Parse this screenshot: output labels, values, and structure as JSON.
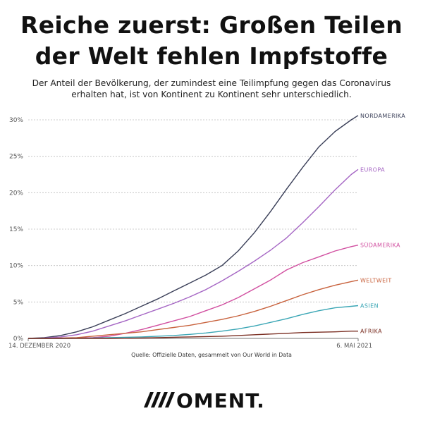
{
  "header": {
    "title_line1": "Reiche zuerst: Großen Teilen",
    "title_line2": "der Welt fehlen Impfstoffe",
    "subtitle_line1": "Der Anteil der Bevölkerung, der zumindest eine Teilimpfung gegen das Coronavirus",
    "subtitle_line2": "erhalten hat, ist von Kontinent zu Kontinent sehr unterschiedlich."
  },
  "footer": {
    "source": "Quelle: Offizielle Daten, gesammelt von Our World in Data",
    "logo": "MOMENT."
  },
  "chart_data": {
    "type": "line",
    "title": "",
    "xlabel": "",
    "ylabel": "",
    "ylim": [
      0,
      30
    ],
    "y_ticks": [
      0,
      5,
      10,
      15,
      20,
      25,
      30
    ],
    "y_tick_labels": [
      "0%",
      "5%",
      "10%",
      "15%",
      "20%",
      "25%",
      "30%"
    ],
    "x_range_days": [
      0,
      143
    ],
    "x_tick_labels": [
      {
        "day": 0,
        "label": "14. DEZEMBER 2020"
      },
      {
        "day": 143,
        "label": "6. MAI 2021"
      }
    ],
    "grid": true,
    "series": [
      {
        "name": "NORDAMERIKA",
        "color": "#3a3f58",
        "x": [
          0,
          7,
          14,
          21,
          28,
          35,
          42,
          49,
          56,
          63,
          70,
          77,
          84,
          91,
          98,
          105,
          112,
          119,
          126,
          133,
          140,
          143
        ],
        "y": [
          0,
          0.1,
          0.4,
          0.9,
          1.6,
          2.5,
          3.4,
          4.4,
          5.4,
          6.5,
          7.6,
          8.7,
          10.0,
          12.0,
          14.5,
          17.4,
          20.5,
          23.5,
          26.3,
          28.4,
          30.0,
          30.6
        ]
      },
      {
        "name": "EUROPA",
        "color": "#a566c4",
        "x": [
          0,
          7,
          14,
          21,
          28,
          35,
          42,
          49,
          56,
          63,
          70,
          77,
          84,
          91,
          98,
          105,
          112,
          119,
          126,
          133,
          140,
          143
        ],
        "y": [
          0,
          0.05,
          0.2,
          0.5,
          1.0,
          1.7,
          2.4,
          3.2,
          4.0,
          4.8,
          5.7,
          6.7,
          7.9,
          9.2,
          10.6,
          12.1,
          13.8,
          15.9,
          18.1,
          20.4,
          22.5,
          23.2
        ]
      },
      {
        "name": "SÜDAMERIKA",
        "color": "#d14fa0",
        "x": [
          0,
          7,
          14,
          21,
          28,
          35,
          42,
          49,
          56,
          63,
          70,
          77,
          84,
          91,
          98,
          105,
          112,
          119,
          126,
          133,
          140,
          143
        ],
        "y": [
          0,
          0,
          0,
          0.05,
          0.1,
          0.3,
          0.7,
          1.2,
          1.8,
          2.4,
          3.0,
          3.8,
          4.6,
          5.6,
          6.8,
          8.0,
          9.4,
          10.4,
          11.2,
          12.0,
          12.6,
          12.8
        ]
      },
      {
        "name": "WELTWEIT",
        "color": "#c8623d",
        "x": [
          0,
          7,
          14,
          21,
          28,
          35,
          42,
          49,
          56,
          63,
          70,
          77,
          84,
          91,
          98,
          105,
          112,
          119,
          126,
          133,
          140,
          143
        ],
        "y": [
          0,
          0,
          0.05,
          0.1,
          0.3,
          0.5,
          0.7,
          0.9,
          1.2,
          1.5,
          1.8,
          2.2,
          2.6,
          3.1,
          3.7,
          4.4,
          5.2,
          6.0,
          6.7,
          7.3,
          7.8,
          8.0
        ]
      },
      {
        "name": "ASIEN",
        "color": "#3aa6b5",
        "x": [
          0,
          7,
          14,
          21,
          28,
          35,
          42,
          49,
          56,
          63,
          70,
          77,
          84,
          91,
          98,
          105,
          112,
          119,
          126,
          133,
          140,
          143
        ],
        "y": [
          0,
          0,
          0,
          0.02,
          0.05,
          0.1,
          0.15,
          0.2,
          0.3,
          0.4,
          0.55,
          0.75,
          1.0,
          1.3,
          1.7,
          2.2,
          2.7,
          3.3,
          3.8,
          4.2,
          4.4,
          4.5
        ]
      },
      {
        "name": "AFRIKA",
        "color": "#7a2e22",
        "x": [
          0,
          7,
          14,
          21,
          28,
          35,
          42,
          49,
          56,
          63,
          70,
          77,
          84,
          91,
          98,
          105,
          112,
          119,
          126,
          133,
          140,
          143
        ],
        "y": [
          0,
          0,
          0,
          0,
          0,
          0,
          0.02,
          0.05,
          0.1,
          0.15,
          0.2,
          0.25,
          0.3,
          0.4,
          0.5,
          0.6,
          0.7,
          0.8,
          0.85,
          0.9,
          1.0,
          1.0
        ]
      }
    ]
  }
}
